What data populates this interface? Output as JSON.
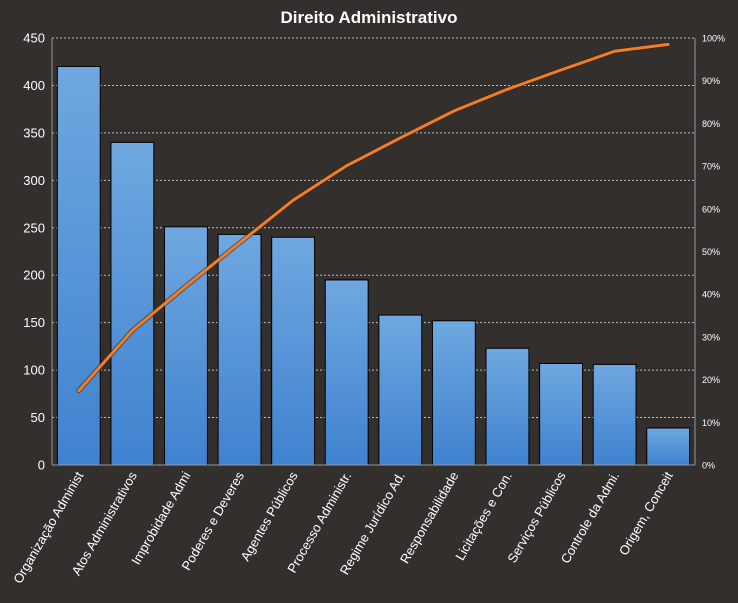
{
  "chart_data": {
    "type": "bar",
    "title": "Direito Administrativo",
    "categories": [
      "Organização Administ",
      "Atos Administrativos",
      "Improbidade Admi",
      "Poderes e Deveres",
      "Agentes Públicos",
      "Processo Administr.",
      "Regime Jurídico Ad.",
      "Responsabilidade",
      "Licitações e Con.",
      "Serviços Públicos",
      "Controle da Admi.",
      "Origem, Conceit"
    ],
    "series": [
      {
        "type": "bar",
        "axis": "left",
        "values": [
          420,
          340,
          251,
          243,
          240,
          195,
          158,
          152,
          123,
          107,
          106,
          39
        ]
      },
      {
        "type": "line",
        "axis": "right",
        "values": [
          17.4,
          31.5,
          41.9,
          52.0,
          62.0,
          70.1,
          76.6,
          82.9,
          88.0,
          92.5,
          96.9,
          98.5
        ]
      }
    ],
    "y_left": {
      "min": 0,
      "max": 450,
      "ticks": [
        "0",
        "50",
        "100",
        "150",
        "200",
        "250",
        "300",
        "350",
        "400",
        "450"
      ]
    },
    "y_right": {
      "min": 0,
      "max": 100,
      "ticks": [
        "0%",
        "10%",
        "20%",
        "30%",
        "40%",
        "50%",
        "60%",
        "70%",
        "80%",
        "90%",
        "100%"
      ]
    },
    "grid": "horizontal dashed",
    "colors": {
      "bar_top": "#6fa8e0",
      "bar_bottom": "#3f82cf",
      "line": "#f07d2a",
      "background": "#332f2c",
      "text": "#ffffff"
    }
  }
}
